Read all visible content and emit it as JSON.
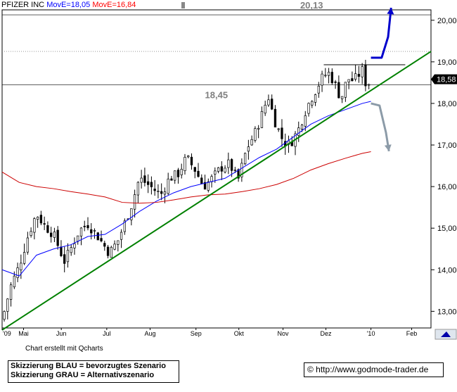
{
  "header": {
    "symbol": "PFIZER INC",
    "ma1": "MovE=18,05",
    "ma2": "MovE=16,84",
    "ma1_color": "#0000ff",
    "ma2_color": "#ff0000"
  },
  "chart_data": {
    "type": "candlestick",
    "title": "PFIZER INC",
    "ylim": [
      12.6,
      20.25
    ],
    "xlim": [
      0,
      100
    ],
    "yticks": [
      "20,00",
      "19,00",
      "18,00",
      "17,00",
      "16,00",
      "15,00",
      "14,00",
      "13,00"
    ],
    "ytick_values": [
      20,
      19,
      18,
      17,
      16,
      15,
      14,
      13
    ],
    "months": [
      "'09",
      "Mai",
      "Jun",
      "Jul",
      "Aug",
      "Sep",
      "Okt",
      "Nov",
      "Dez",
      "'10",
      "Feb"
    ],
    "month_x": [
      0,
      5,
      13.8,
      24.4,
      34.5,
      45.2,
      55.2,
      65.5,
      75.5,
      86,
      95.5
    ],
    "last_price": "18,58",
    "last_value": 18.58,
    "levels": [
      {
        "value": 20.13,
        "label": "20,13"
      },
      {
        "value": 18.45,
        "label": "18,45"
      }
    ],
    "resistance": 18.93,
    "trendline": {
      "x": [
        0,
        100
      ],
      "y": [
        12.55,
        19.25
      ],
      "color": "#008000"
    },
    "series": [
      {
        "name": "MovE=18,05",
        "color": "#0000ff",
        "x": [
          0,
          4,
          8,
          12,
          16,
          20,
          24,
          28,
          32,
          36,
          40,
          44,
          48,
          52,
          56,
          60,
          64,
          68,
          72,
          76,
          80,
          84,
          86
        ],
        "y": [
          14.0,
          13.85,
          14.35,
          14.5,
          14.6,
          14.8,
          14.85,
          15.1,
          15.4,
          15.65,
          15.85,
          16.0,
          16.1,
          16.2,
          16.45,
          16.7,
          16.9,
          17.2,
          17.5,
          17.7,
          17.85,
          18.0,
          18.05
        ]
      },
      {
        "name": "MovE=16,84",
        "color": "#cc0000",
        "x": [
          0,
          4,
          8,
          12,
          16,
          20,
          24,
          28,
          32,
          36,
          40,
          44,
          48,
          52,
          56,
          60,
          64,
          68,
          72,
          76,
          80,
          84,
          86
        ],
        "y": [
          16.35,
          16.1,
          16.0,
          15.95,
          15.88,
          15.82,
          15.75,
          15.62,
          15.6,
          15.62,
          15.68,
          15.75,
          15.8,
          15.82,
          15.88,
          15.95,
          16.05,
          16.2,
          16.4,
          16.55,
          16.68,
          16.8,
          16.84
        ]
      }
    ],
    "scenarios": [
      {
        "name": "BLAU",
        "color": "#0000cc",
        "x": [
          86,
          88.5,
          90,
          90.7
        ],
        "y": [
          19.1,
          19.1,
          19.6,
          20.3
        ]
      },
      {
        "name": "GRAU",
        "color": "#8c9ba8",
        "x": [
          86,
          88,
          89.5,
          90.2
        ],
        "y": [
          18.0,
          17.95,
          17.3,
          16.85
        ]
      }
    ]
  },
  "footer": {
    "credit": "Chart erstellt mit Qcharts",
    "legend_blue": "Skizzierung BLAU = bevorzugtes Szenario",
    "legend_gray": "Skizzierung GRAU = Alternativszenario",
    "url": "© http://www.godmode-trader.de"
  }
}
